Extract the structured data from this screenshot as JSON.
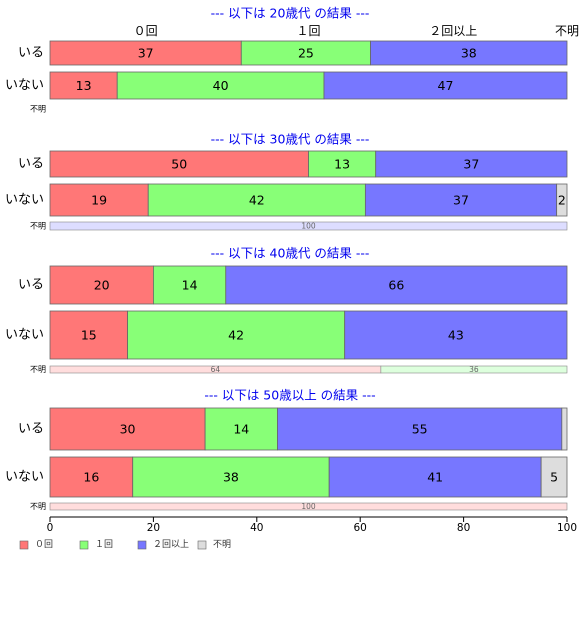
{
  "chart_data": {
    "type": "bar",
    "orientation": "horizontal",
    "stacked": true,
    "xlim": [
      0,
      100
    ],
    "x_ticks": [
      0,
      20,
      40,
      60,
      80,
      100
    ],
    "column_labels": [
      "０回",
      "１回",
      "２回以上",
      "不明"
    ],
    "legend": {
      "placement": "bottom-left",
      "items": [
        {
          "name": "０回",
          "color": "#FF7777"
        },
        {
          "name": "１回",
          "color": "#88FF77"
        },
        {
          "name": "２回以上",
          "color": "#7777FF"
        },
        {
          "name": "不明",
          "color": "#DDDDDD"
        }
      ]
    },
    "panels": [
      {
        "title": "--- 以下は 20歳代 の結果 ---",
        "rows": [
          {
            "label": "いる",
            "values": [
              37,
              25,
              38,
              0
            ],
            "value_labels": [
              "37",
              "25",
              "38",
              ""
            ]
          },
          {
            "label": "いない",
            "values": [
              13,
              40,
              47,
              0
            ],
            "value_labels": [
              "13",
              "40",
              "47",
              ""
            ]
          }
        ],
        "unknown": {
          "label": "不明",
          "values": [],
          "value_labels": [],
          "colors": []
        }
      },
      {
        "title": "--- 以下は 30歳代 の結果 ---",
        "rows": [
          {
            "label": "いる",
            "values": [
              50,
              13,
              37,
              0
            ],
            "value_labels": [
              "50",
              "13",
              "37",
              ""
            ]
          },
          {
            "label": "いない",
            "values": [
              19,
              42,
              37,
              2
            ],
            "value_labels": [
              "19",
              "42",
              "37",
              "2"
            ]
          }
        ],
        "unknown": {
          "label": "不明",
          "values": [
            100
          ],
          "value_labels": [
            "100"
          ],
          "colors": [
            "#DDDDFF"
          ]
        }
      },
      {
        "title": "--- 以下は 40歳代 の結果 ---",
        "rows": [
          {
            "label": "いる",
            "values": [
              20,
              14,
              66,
              0
            ],
            "value_labels": [
              "20",
              "14",
              "66",
              ""
            ]
          },
          {
            "label": "いない",
            "values": [
              15,
              42,
              43,
              0
            ],
            "value_labels": [
              "15",
              "42",
              "43",
              ""
            ]
          }
        ],
        "unknown": {
          "label": "不明",
          "values": [
            64,
            36
          ],
          "value_labels": [
            "64",
            "36"
          ],
          "colors": [
            "#FFDDDD",
            "#DDFFDD"
          ]
        }
      },
      {
        "title": "--- 以下は 50歳以上 の結果 ---",
        "rows": [
          {
            "label": "いる",
            "values": [
              30,
              14,
              55,
              1
            ],
            "value_labels": [
              "30",
              "14",
              "55",
              ""
            ]
          },
          {
            "label": "いない",
            "values": [
              16,
              38,
              41,
              5
            ],
            "value_labels": [
              "16",
              "38",
              "41",
              "5"
            ]
          }
        ],
        "unknown": {
          "label": "不明",
          "values": [
            100
          ],
          "value_labels": [
            "100"
          ],
          "colors": [
            "#FFDDDD"
          ]
        }
      }
    ]
  }
}
